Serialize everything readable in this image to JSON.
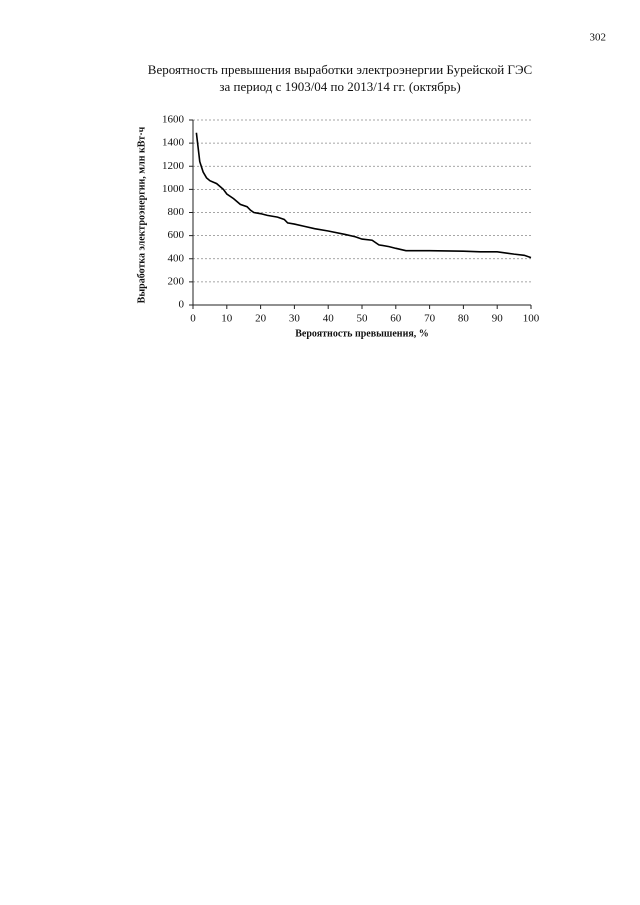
{
  "page_number": "302",
  "chart_data": {
    "type": "line",
    "title": "Вероятность превышения выработки электроэнергии Бурейской ГЭС",
    "subtitle": "за период с 1903/04 по 2013/14 гг. (октябрь)",
    "x_label": "Вероятность превышения, %",
    "y_label": "Выработка электроэнергии, млн кВт·ч",
    "x": [
      1,
      2,
      3,
      4,
      5,
      7,
      9,
      10,
      12,
      14,
      16,
      17,
      18,
      20,
      22,
      25,
      27,
      28,
      30,
      33,
      36,
      40,
      45,
      48,
      50,
      53,
      55,
      58,
      60,
      63,
      70,
      80,
      85,
      90,
      95,
      98,
      100
    ],
    "values": [
      1490,
      1240,
      1150,
      1100,
      1075,
      1050,
      1000,
      960,
      920,
      870,
      850,
      820,
      800,
      790,
      775,
      760,
      740,
      710,
      700,
      680,
      660,
      640,
      610,
      590,
      570,
      560,
      520,
      505,
      490,
      470,
      470,
      465,
      460,
      460,
      440,
      430,
      410
    ],
    "color": "#000000",
    "xlim": [
      0,
      100
    ],
    "xticks": [
      0,
      10,
      20,
      30,
      40,
      50,
      60,
      70,
      80,
      90,
      100
    ],
    "ylim": [
      0,
      1600
    ],
    "yticks": [
      0,
      200,
      400,
      600,
      800,
      1000,
      1200,
      1400,
      1600
    ],
    "grid": true
  }
}
